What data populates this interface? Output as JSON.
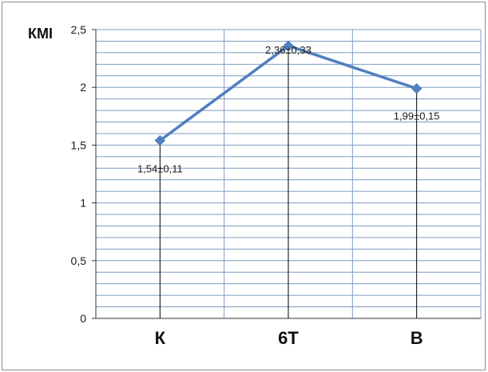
{
  "chart_data": {
    "type": "line",
    "title": "",
    "ylabel": "КМІ",
    "xlabel": "",
    "categories": [
      "К",
      "6Т",
      "В"
    ],
    "series": [
      {
        "values": [
          1.54,
          2.36,
          1.99
        ],
        "labels": [
          "1,54±0,11",
          "2,36±0,33",
          "1,99±0,15"
        ],
        "color": "#4f7fbe"
      }
    ],
    "ylim": [
      0,
      2.5
    ],
    "yticks": [
      "0",
      "0,5",
      "1",
      "1,5",
      "2",
      "2,5"
    ],
    "grid": true,
    "drop_lines": true
  }
}
